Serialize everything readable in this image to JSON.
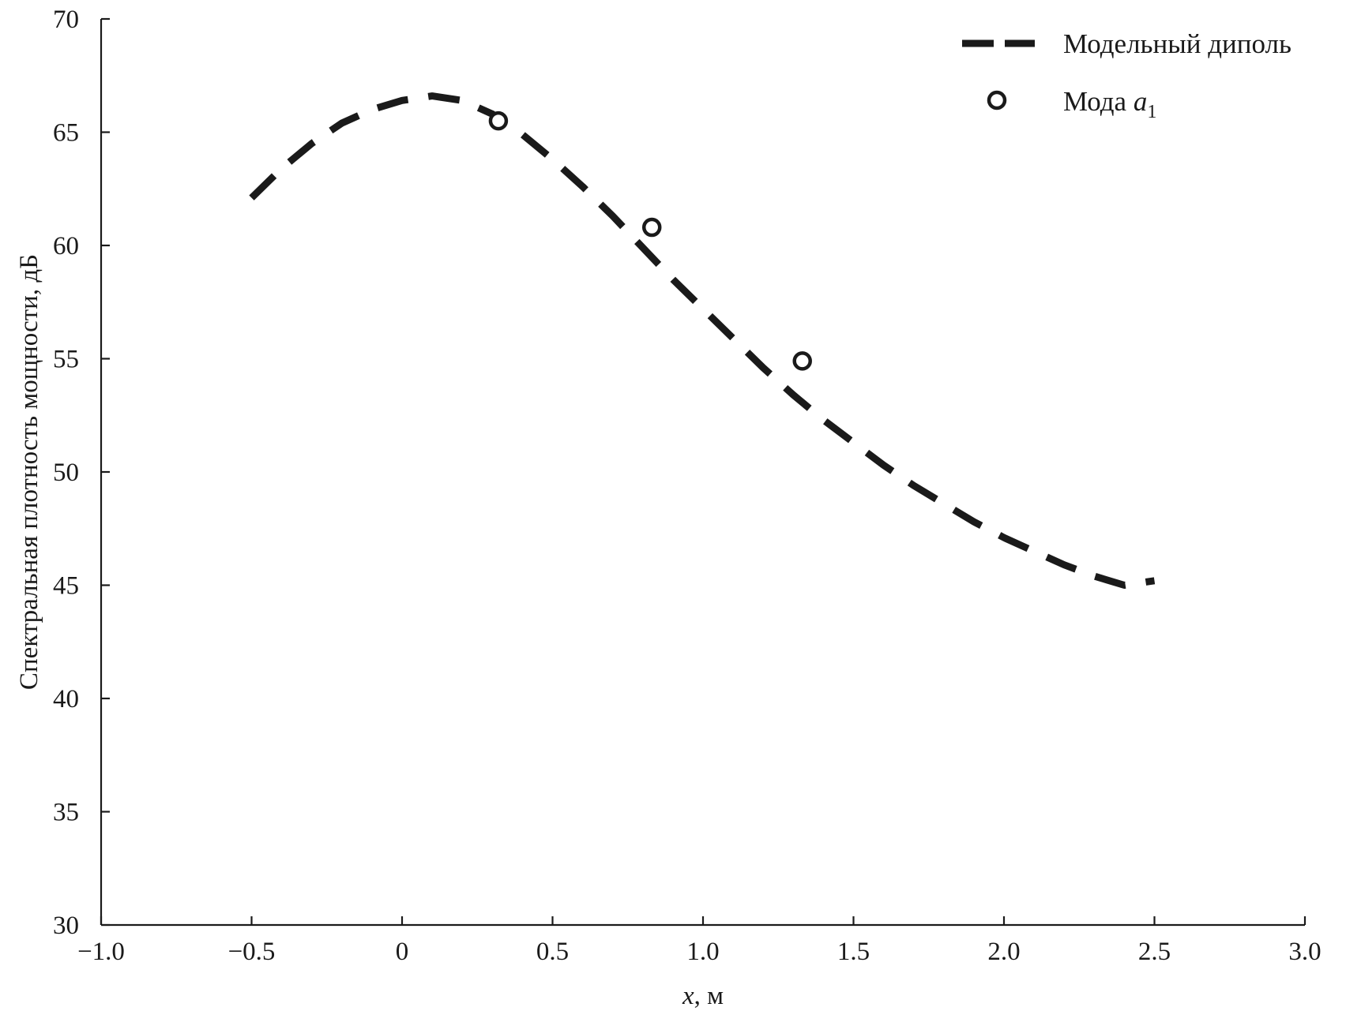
{
  "chart_data": {
    "type": "line",
    "title": "",
    "xlabel_var": "x",
    "xlabel_unit": ", м",
    "ylabel": "Спектральная плотность мощности, дБ",
    "xlim": [
      -1.0,
      3.0
    ],
    "ylim": [
      30,
      70
    ],
    "xticks": [
      -1.0,
      -0.5,
      0,
      0.5,
      1.0,
      1.5,
      2.0,
      2.5,
      3.0
    ],
    "xtick_labels": [
      "−1.0",
      "−0.5",
      "0",
      "0.5",
      "1.0",
      "1.5",
      "2.0",
      "2.5",
      "3.0"
    ],
    "yticks": [
      30,
      35,
      40,
      45,
      50,
      55,
      60,
      65,
      70
    ],
    "ytick_labels": [
      "30",
      "35",
      "40",
      "45",
      "50",
      "55",
      "60",
      "65",
      "70"
    ],
    "grid": false,
    "legend_position": "top-right",
    "series": [
      {
        "name": "Модельный диполь",
        "style": "dashed-line",
        "color": "#1a1a1a",
        "x": [
          -0.5,
          -0.4,
          -0.3,
          -0.2,
          -0.1,
          0.0,
          0.1,
          0.2,
          0.3,
          0.4,
          0.5,
          0.6,
          0.7,
          0.8,
          0.9,
          1.0,
          1.1,
          1.2,
          1.3,
          1.4,
          1.5,
          1.6,
          1.7,
          1.8,
          1.9,
          2.0,
          2.1,
          2.2,
          2.3,
          2.4,
          2.5
        ],
        "y": [
          62.1,
          63.4,
          64.5,
          65.4,
          66.0,
          66.4,
          66.6,
          66.4,
          65.8,
          64.9,
          63.8,
          62.6,
          61.3,
          59.9,
          58.5,
          57.2,
          55.9,
          54.6,
          53.4,
          52.3,
          51.3,
          50.3,
          49.4,
          48.6,
          47.8,
          47.1,
          46.5,
          45.9,
          45.4,
          45.0,
          45.2
        ]
      },
      {
        "name_main": "Мода ",
        "name_var": "a",
        "name_sub": "1",
        "style": "open-circle",
        "color": "#1a1a1a",
        "x": [
          0.32,
          0.83,
          1.33
        ],
        "y": [
          65.5,
          60.8,
          54.9
        ]
      }
    ]
  }
}
